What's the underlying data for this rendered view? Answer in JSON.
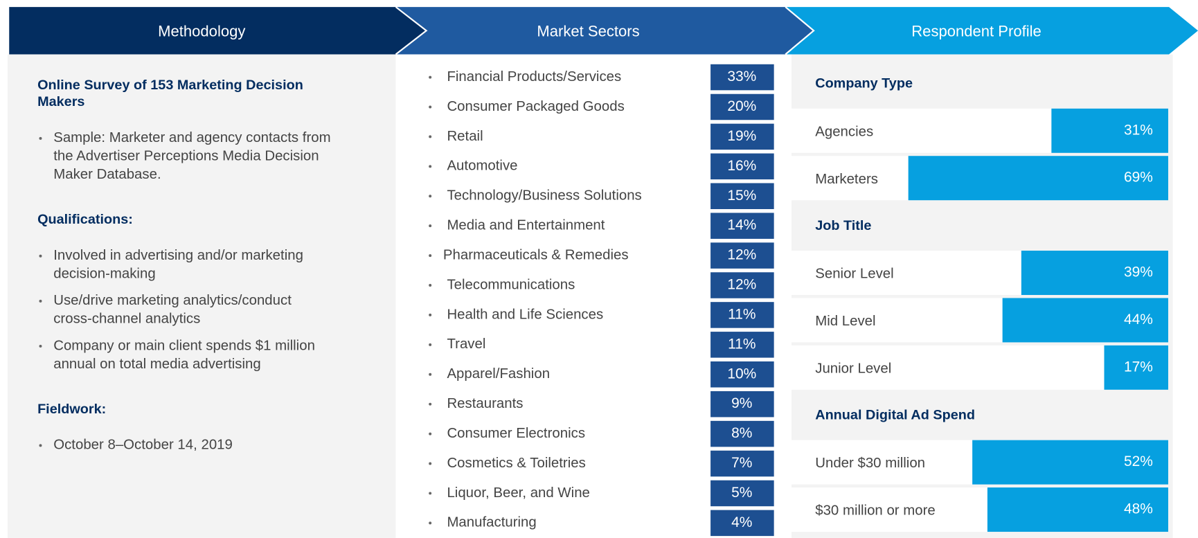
{
  "header": {
    "columns": [
      "Methodology",
      "Market Sectors",
      "Respondent Profile"
    ]
  },
  "methodology": {
    "sections": [
      {
        "heading": [
          "Online Survey of 153 Marketing Decision",
          "Makers"
        ],
        "bullets": [
          [
            "Sample: Marketer and agency contacts from",
            "the Advertiser Perceptions Media Decision",
            "Maker Database."
          ]
        ]
      },
      {
        "heading": [
          "Qualifications:"
        ],
        "bullets": [
          [
            "Involved in advertising and/or marketing",
            "decision-making"
          ],
          [
            "Use/drive marketing analytics/conduct",
            "cross-channel analytics"
          ],
          [
            "Company or main client spends $1 million",
            "annual on total media advertising"
          ]
        ]
      },
      {
        "heading": [
          "Fieldwork:"
        ],
        "bullets": [
          [
            "October 8–October 14, 2019"
          ]
        ]
      }
    ]
  },
  "market_sectors": {
    "categories": [
      "Financial Products/Services",
      "Consumer Packaged Goods",
      "Retail",
      "Automotive",
      "Technology/Business Solutions",
      "Media and Entertainment",
      "Pharmaceuticals & Remedies",
      "Telecommunications",
      "Health and Life Sciences",
      "Travel",
      "Apparel/Fashion",
      "Restaurants",
      "Consumer Electronics",
      "Cosmetics & Toiletries",
      "Liquor, Beer, and Wine",
      "Manufacturing"
    ],
    "values": [
      33,
      20,
      19,
      16,
      15,
      14,
      12,
      12,
      11,
      11,
      10,
      9,
      8,
      7,
      5,
      4
    ],
    "value_labels": [
      "33%",
      "20%",
      "19%",
      "16%",
      "15%",
      "14%",
      "12%",
      "12%",
      "11%",
      "11%",
      "10%",
      "9%",
      "8%",
      "7%",
      "5%",
      "4%"
    ],
    "color": "#1d4f91"
  },
  "respondent_profile": {
    "color": "#06a0e0",
    "groups": [
      {
        "heading": "Company Type",
        "categories": [
          "Agencies",
          "Marketers"
        ],
        "values": [
          31,
          69
        ],
        "value_labels": [
          "31%",
          "69%"
        ]
      },
      {
        "heading": "Job Title",
        "categories": [
          "Senior Level",
          "Mid Level",
          "Junior Level"
        ],
        "values": [
          39,
          44,
          17
        ],
        "value_labels": [
          "39%",
          "44%",
          "17%"
        ]
      },
      {
        "heading": "Annual Digital Ad Spend",
        "categories": [
          "Under $30 million",
          "$30 million or more"
        ],
        "values": [
          52,
          48
        ],
        "value_labels": [
          "52%",
          "48%"
        ]
      }
    ]
  }
}
